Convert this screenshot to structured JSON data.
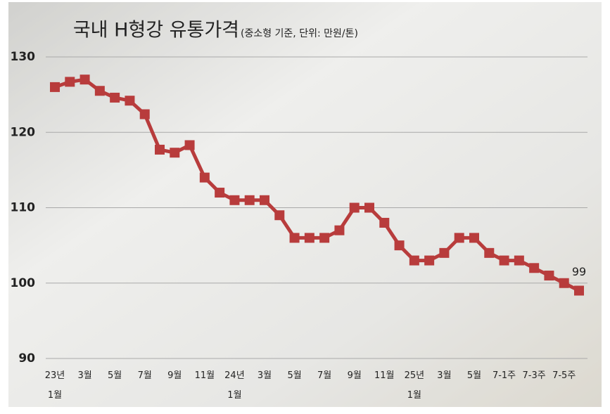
{
  "chart_data": {
    "type": "line",
    "title": "국내 H형강 유통가격",
    "subtitle": "(중소형 기준, 단위: 만원/톤)",
    "categories": [
      "23년\n1월",
      null,
      "3월",
      null,
      "5월",
      null,
      "7월",
      null,
      "9월",
      null,
      "11월",
      null,
      "24년\n1월",
      null,
      "3월",
      null,
      "5월",
      null,
      "7월",
      null,
      "9월",
      null,
      "11월",
      null,
      "25년\n1월",
      null,
      "3월",
      null,
      "5월",
      null,
      "7-1주",
      null,
      "7-3주",
      null,
      "7-5주",
      null
    ],
    "series": [
      {
        "color": "#b83c3c",
        "values": [
          126,
          126.7,
          127,
          125.5,
          124.6,
          124.2,
          122.4,
          117.7,
          117.3,
          118.3,
          114,
          112,
          111,
          111,
          111,
          109,
          106,
          106,
          106,
          107,
          110,
          110,
          108,
          105,
          103,
          103,
          104,
          106,
          106,
          104,
          103,
          103,
          102,
          101,
          100,
          99
        ]
      }
    ],
    "ylim": [
      90,
      130
    ],
    "yticks": [
      90,
      100,
      110,
      120,
      130
    ],
    "grid": true
  }
}
